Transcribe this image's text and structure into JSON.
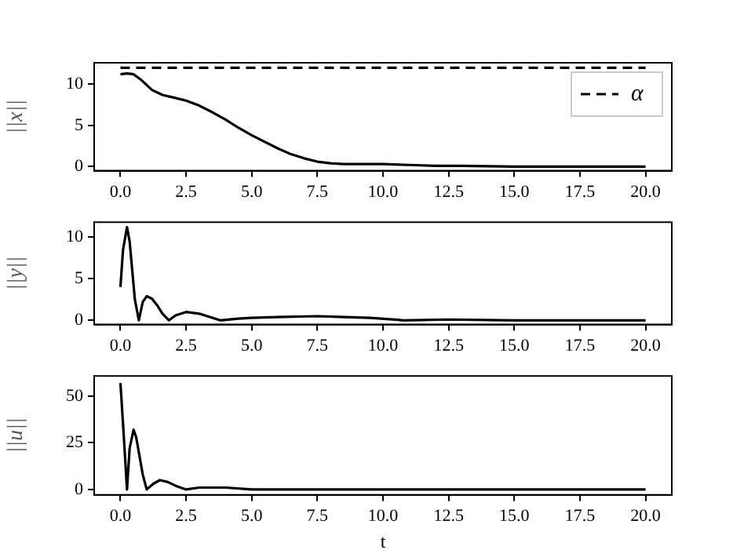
{
  "chart_data": [
    {
      "type": "line",
      "ylabel": "||x||",
      "xlim": [
        -1,
        21
      ],
      "xticks": [
        {
          "value": 0,
          "label": "0.0"
        },
        2.5,
        {
          "value": 5,
          "label": "5.0"
        },
        7.5,
        {
          "value": 10,
          "label": "10.0"
        },
        12.5,
        {
          "value": 15,
          "label": "15.0"
        },
        17.5,
        {
          "value": 20,
          "label": "20.0"
        }
      ],
      "ylim": [
        -0.5,
        12.6
      ],
      "yticks": [
        0,
        5,
        10
      ],
      "grid": false,
      "legend": "top right",
      "marker": "none",
      "series": [
        {
          "color": "#000000",
          "x": [
            0,
            0.25,
            0.5,
            0.8,
            1.2,
            1.6,
            2,
            2.5,
            3,
            3.5,
            4,
            4.5,
            5,
            5.5,
            6,
            6.5,
            7,
            7.5,
            8,
            8.5,
            9,
            10,
            11,
            12,
            13,
            15,
            17.5,
            20
          ],
          "values": [
            11.2,
            11.3,
            11.2,
            10.5,
            9.3,
            8.7,
            8.4,
            8.0,
            7.4,
            6.6,
            5.7,
            4.7,
            3.8,
            3.0,
            2.2,
            1.5,
            1.0,
            0.6,
            0.4,
            0.3,
            0.3,
            0.3,
            0.2,
            0.1,
            0.1,
            0,
            0,
            0
          ]
        },
        {
          "name": "α",
          "color": "#000000",
          "line_style": "dashed",
          "x": [
            0,
            20
          ],
          "values": [
            12,
            12
          ]
        }
      ]
    },
    {
      "type": "line",
      "ylabel": "||y||",
      "xlim": [
        -1,
        21
      ],
      "xticks": [
        {
          "value": 0,
          "label": "0.0"
        },
        2.5,
        {
          "value": 5,
          "label": "5.0"
        },
        7.5,
        {
          "value": 10,
          "label": "10.0"
        },
        12.5,
        {
          "value": 15,
          "label": "15.0"
        },
        17.5,
        {
          "value": 20,
          "label": "20.0"
        }
      ],
      "ylim": [
        -0.5,
        11.8
      ],
      "yticks": [
        0,
        5,
        10
      ],
      "grid": false,
      "marker": "none",
      "series": [
        {
          "color": "#000000",
          "x": [
            0,
            0.1,
            0.25,
            0.35,
            0.45,
            0.55,
            0.7,
            0.85,
            1.0,
            1.2,
            1.4,
            1.6,
            1.85,
            2.1,
            2.5,
            3,
            3.4,
            3.8,
            4.5,
            5,
            6,
            7.5,
            8.5,
            9.5,
            10.8,
            12.5,
            15,
            20
          ],
          "values": [
            4,
            8.5,
            11.2,
            9.5,
            6,
            2.5,
            0,
            2.2,
            2.9,
            2.6,
            1.8,
            0.8,
            0,
            0.6,
            1.0,
            0.8,
            0.4,
            0,
            0.2,
            0.3,
            0.4,
            0.5,
            0.4,
            0.3,
            0,
            0.1,
            0,
            0
          ]
        }
      ]
    },
    {
      "type": "line",
      "xlabel": "t",
      "ylabel": "||u||",
      "xlim": [
        -1,
        21
      ],
      "xticks": [
        {
          "value": 0,
          "label": "0.0"
        },
        2.5,
        {
          "value": 5,
          "label": "5.0"
        },
        7.5,
        {
          "value": 10,
          "label": "10.0"
        },
        12.5,
        {
          "value": 15,
          "label": "15.0"
        },
        17.5,
        {
          "value": 20,
          "label": "20.0"
        }
      ],
      "ylim": [
        -2.9,
        60.8
      ],
      "yticks": [
        0,
        25,
        50
      ],
      "grid": false,
      "marker": "none",
      "series": [
        {
          "color": "#000000",
          "x": [
            0,
            0.1,
            0.25,
            0.35,
            0.5,
            0.6,
            0.7,
            0.85,
            1.0,
            1.25,
            1.5,
            1.8,
            2.1,
            2.5,
            3,
            4,
            5,
            7.5,
            10,
            15,
            20
          ],
          "values": [
            57,
            35,
            0,
            22,
            32,
            28,
            20,
            8,
            0,
            3,
            5,
            4,
            2,
            0,
            1,
            1,
            0,
            0,
            0,
            0,
            0
          ]
        }
      ]
    }
  ]
}
